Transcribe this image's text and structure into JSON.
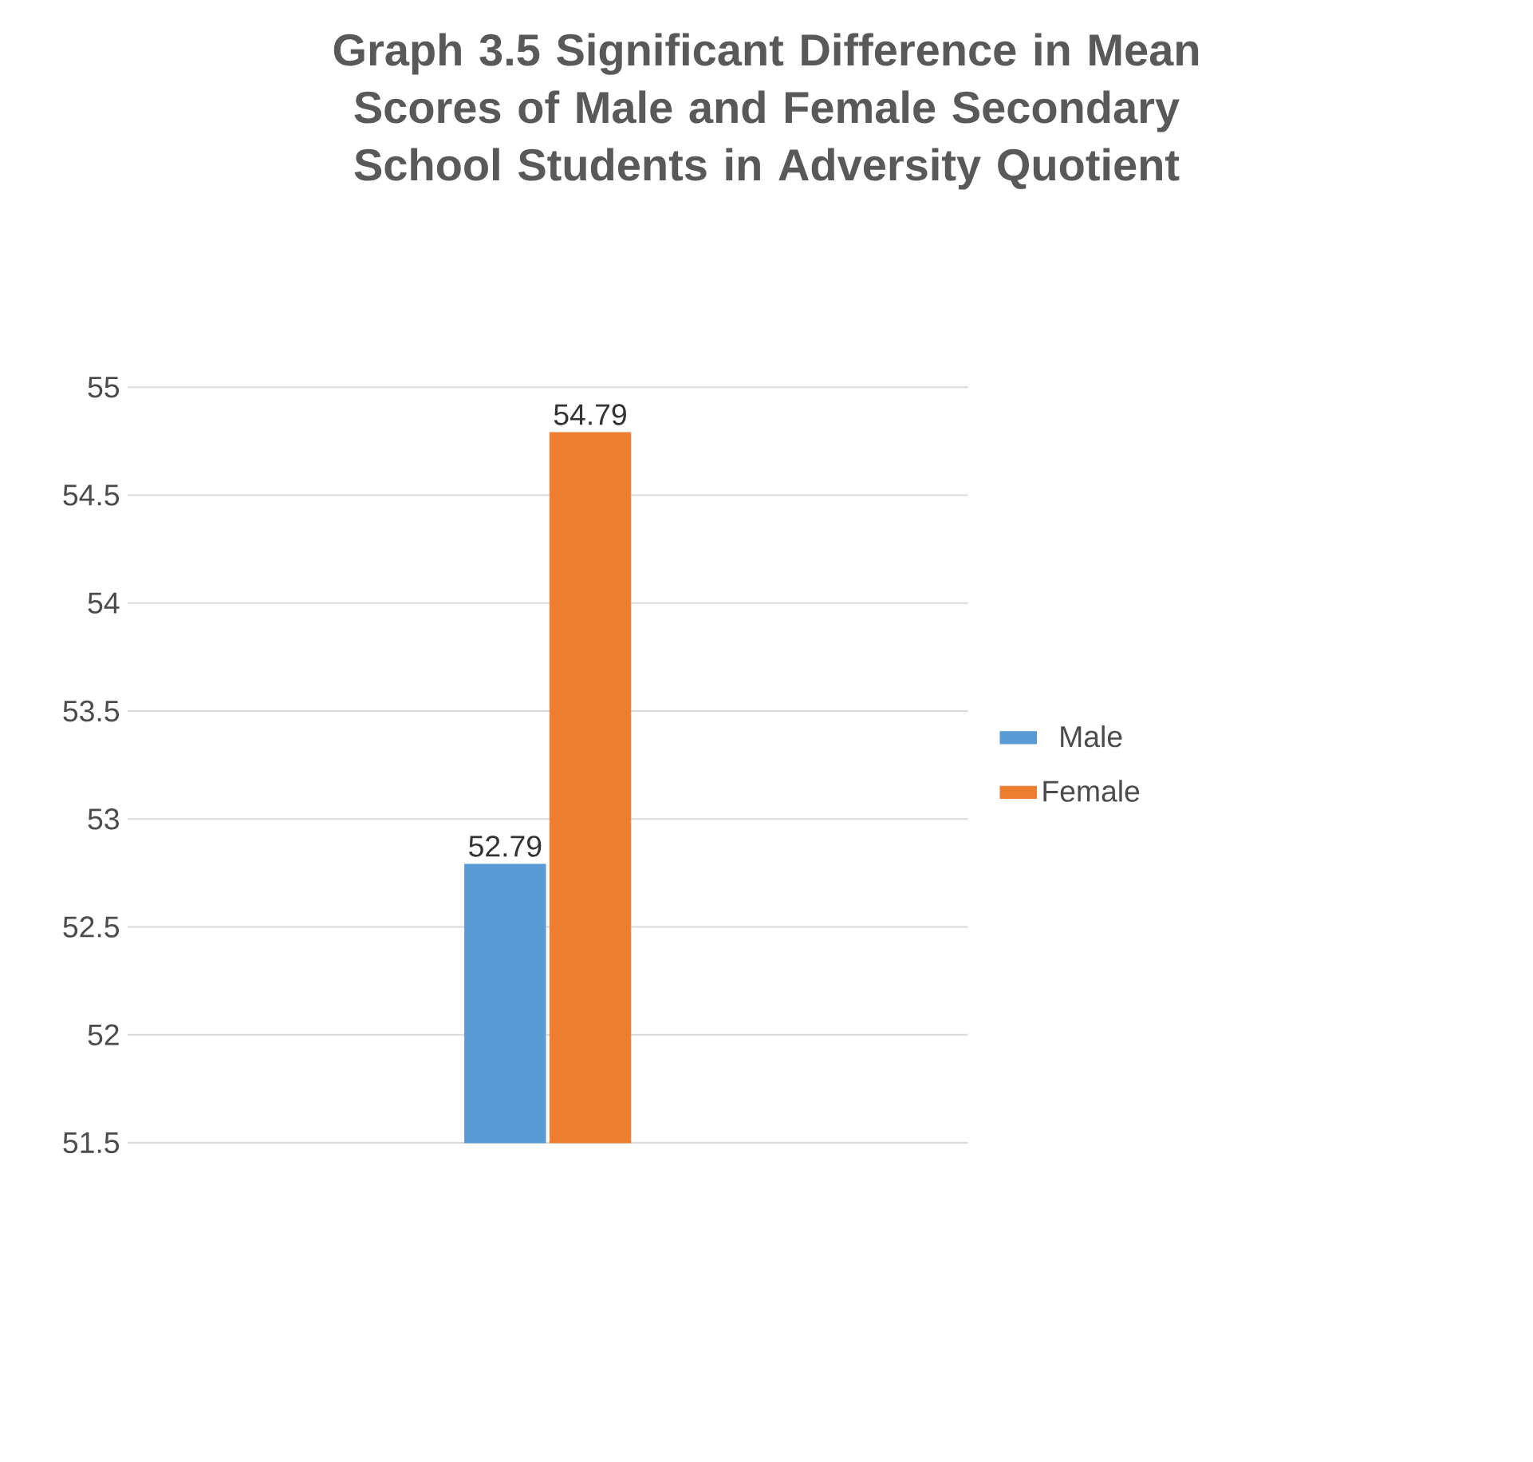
{
  "chart_data": {
    "type": "bar",
    "title": "Graph 3.5 Significant Difference in Mean Scores of Male and Female Secondary School Students in Adversity Quotient",
    "categories": [
      null
    ],
    "series": [
      {
        "name": "Male",
        "color": "#5b9bd5",
        "values": [
          52.79
        ]
      },
      {
        "name": "Female",
        "color": "#ed7d31",
        "values": [
          54.79
        ]
      }
    ],
    "ylim": [
      51.5,
      55
    ],
    "yticks": [
      51.5,
      52,
      52.5,
      53,
      53.5,
      54,
      54.5,
      55
    ],
    "grid": "y",
    "legend": "right",
    "data_labels": true
  }
}
